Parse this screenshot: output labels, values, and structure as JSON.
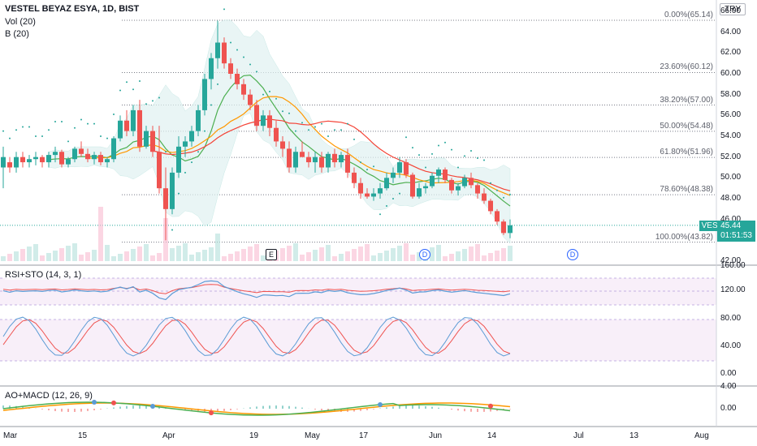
{
  "header": {
    "symbol_title": "VESTEL BEYAZ ESYA, 1D, BIST",
    "indicator_vol": "Vol (20)",
    "indicator_b": "B (20)",
    "currency_button": "TRY"
  },
  "panes": {
    "rsi_label": "RSI+STO (14, 3, 1)",
    "macd_label": "AO+MACD (12, 26, 9)"
  },
  "price_scale": [
    "66.00",
    "64.00",
    "62.00",
    "60.00",
    "58.00",
    "56.00",
    "54.00",
    "52.00",
    "50.00",
    "48.00",
    "46.00",
    "44.00",
    "42.00"
  ],
  "rsi_scale": [
    "160.00",
    "120.00",
    "80.00",
    "40.00",
    "0.00"
  ],
  "macd_scale": [
    "4.00",
    "0.00"
  ],
  "fib_levels": [
    {
      "label": "0.00%(65.14)",
      "value": 65.14
    },
    {
      "label": "23.60%(60.12)",
      "value": 60.12
    },
    {
      "label": "38.20%(57.00)",
      "value": 57.0
    },
    {
      "label": "50.00%(54.48)",
      "value": 54.48
    },
    {
      "label": "61.80%(51.96)",
      "value": 51.96
    },
    {
      "label": "78.60%(48.38)",
      "value": 48.38
    },
    {
      "label": "100.00%(43.82)",
      "value": 43.82
    }
  ],
  "last_price": {
    "ticker": "VESBE",
    "price": "45.44",
    "countdown": "01:51:53"
  },
  "events": {
    "earnings": "E",
    "dividend": "D"
  },
  "x_axis": [
    "Mar",
    "15",
    "Apr",
    "19",
    "May",
    "17",
    "Jun",
    "14",
    "Jul",
    "13",
    "Aug"
  ],
  "colors": {
    "up": "#26a69a",
    "down": "#ef5350",
    "bb_band": "#e0f2f1",
    "ma_green": "#4caf50",
    "ma_orange": "#ff9800",
    "ma_red": "#f44336",
    "sar": "#26a69a",
    "rsi_blue": "#5b9bd5",
    "sto_red": "#ef5350"
  },
  "chart_data": {
    "type": "candlestick",
    "ylim": [
      42,
      66
    ],
    "candles": [
      [
        51,
        53,
        49,
        52
      ],
      [
        51.5,
        52,
        50.5,
        51
      ],
      [
        51,
        52.5,
        50.5,
        52
      ],
      [
        52,
        52.5,
        51,
        51.5
      ],
      [
        51.5,
        52.2,
        51,
        51.8
      ],
      [
        51.8,
        52.5,
        51.2,
        52
      ],
      [
        52,
        52.2,
        51,
        51.5
      ],
      [
        51.5,
        52.5,
        51,
        52.2
      ],
      [
        52.2,
        53,
        51.5,
        52.5
      ],
      [
        52.5,
        52.7,
        51,
        51.3
      ],
      [
        51.3,
        52,
        51,
        51.8
      ],
      [
        51.8,
        53,
        51.5,
        52.8
      ],
      [
        52.8,
        53.5,
        52,
        52.3
      ],
      [
        52.3,
        52.8,
        51.5,
        51.8
      ],
      [
        51.8,
        52.5,
        51.3,
        52.2
      ],
      [
        52.2,
        52.5,
        51.2,
        51.5
      ],
      [
        51.5,
        52,
        51,
        51.8
      ],
      [
        51.8,
        54,
        51.5,
        53.8
      ],
      [
        53.8,
        56,
        53.5,
        55.5
      ],
      [
        55.5,
        56.5,
        54,
        54.5
      ],
      [
        54.5,
        57,
        54,
        56.5
      ],
      [
        56.5,
        57.5,
        52.5,
        53
      ],
      [
        53,
        55,
        52.8,
        54.5
      ],
      [
        54.5,
        55,
        52,
        52.5
      ],
      [
        52.5,
        55,
        48.5,
        49
      ],
      [
        49,
        51,
        44,
        47
      ],
      [
        47,
        51,
        46.5,
        50.5
      ],
      [
        50.5,
        54,
        50,
        53
      ],
      [
        53,
        54,
        52,
        53.5
      ],
      [
        53.5,
        55,
        53,
        54.5
      ],
      [
        54.5,
        57,
        54,
        56.5
      ],
      [
        56.5,
        60,
        56,
        59.5
      ],
      [
        59.5,
        62,
        58.5,
        61.5
      ],
      [
        61.5,
        65.1,
        60.5,
        63
      ],
      [
        63,
        63.5,
        60.5,
        61
      ],
      [
        61,
        61.5,
        59.5,
        60
      ],
      [
        60,
        60.5,
        58.5,
        59
      ],
      [
        59,
        59.5,
        57.5,
        58
      ],
      [
        58,
        58.5,
        56.5,
        57
      ],
      [
        57,
        57.5,
        54.5,
        55
      ],
      [
        55,
        56.5,
        54.5,
        56
      ],
      [
        56,
        56.5,
        54,
        54.8
      ],
      [
        54.8,
        55.5,
        53,
        53.5
      ],
      [
        53.5,
        54,
        52,
        52.8
      ],
      [
        52.8,
        53.5,
        50.5,
        51
      ],
      [
        51,
        53,
        50.5,
        52.5
      ],
      [
        52.5,
        53.5,
        52,
        52
      ],
      [
        52,
        52.5,
        51,
        51.5
      ],
      [
        51.5,
        52.5,
        50.5,
        52
      ],
      [
        52,
        52.5,
        50.5,
        51
      ],
      [
        51,
        52.5,
        50.5,
        52.3
      ],
      [
        52.3,
        52.8,
        51,
        51.5
      ],
      [
        51.5,
        52.5,
        51,
        52.2
      ],
      [
        52.2,
        52.8,
        50,
        50.5
      ],
      [
        50.5,
        51,
        49,
        49.5
      ],
      [
        49.5,
        50,
        48,
        48.5
      ],
      [
        48.5,
        49,
        48,
        48.2
      ],
      [
        48.2,
        49,
        47.8,
        48.5
      ],
      [
        48.5,
        49.5,
        48,
        49
      ],
      [
        49,
        50.5,
        48.8,
        50
      ],
      [
        50,
        51,
        49.5,
        50.5
      ],
      [
        50.5,
        52,
        50,
        51.5
      ],
      [
        51.5,
        51.8,
        50,
        50.3
      ],
      [
        50.3,
        50.5,
        48,
        48.2
      ],
      [
        48.2,
        49.5,
        48,
        49
      ],
      [
        49,
        49.5,
        48.5,
        49.2
      ],
      [
        49.2,
        50.5,
        49,
        50.2
      ],
      [
        50.2,
        51,
        49.5,
        50.8
      ],
      [
        50.8,
        51,
        49.5,
        49.8
      ],
      [
        49.8,
        50,
        48.5,
        48.8
      ],
      [
        48.8,
        49.5,
        48.3,
        49.2
      ],
      [
        49.2,
        50.3,
        49,
        50
      ],
      [
        50,
        50.5,
        49,
        49.3
      ],
      [
        49.3,
        49.5,
        48,
        48.5
      ],
      [
        48.5,
        49,
        47.5,
        47.8
      ],
      [
        47.8,
        48,
        46.5,
        46.8
      ],
      [
        46.8,
        47,
        45.5,
        45.8
      ],
      [
        45.8,
        46,
        44.5,
        44.7
      ],
      [
        44.7,
        46,
        44.2,
        45.44
      ]
    ]
  }
}
